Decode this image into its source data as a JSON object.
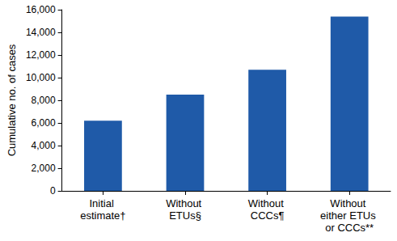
{
  "chart_data": {
    "type": "bar",
    "y_label": "Cumulative no. of cases",
    "categories": [
      "Initial estimate†",
      "Without ETUs§",
      "Without CCCs¶",
      "Without either ETUs or CCCs**"
    ],
    "values": [
      6200,
      8500,
      10700,
      15400
    ],
    "color": "#1f5aa8",
    "ylim": [
      0,
      16000
    ],
    "yticks": [
      0,
      {
        "value": 2000,
        "label": "2,000"
      },
      {
        "value": 4000,
        "label": "4,000"
      },
      {
        "value": 6000,
        "label": "6,000"
      },
      {
        "value": 8000,
        "label": "8,000"
      },
      {
        "value": 10000,
        "label": "10,000"
      },
      {
        "value": 12000,
        "label": "12,000"
      },
      {
        "value": 14000,
        "label": "14,000"
      },
      {
        "value": 16000,
        "label": "16,000"
      }
    ],
    "grid": false
  }
}
